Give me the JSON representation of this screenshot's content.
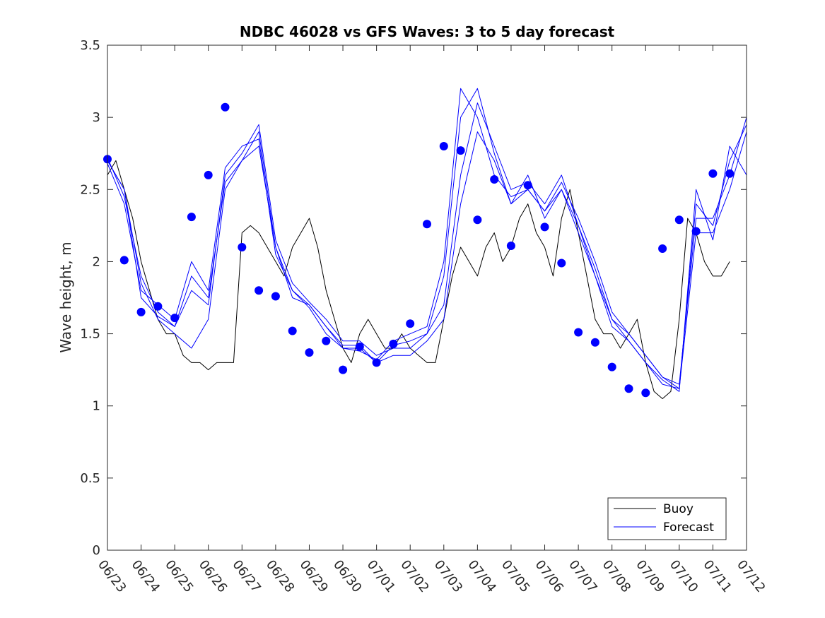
{
  "chart_data": {
    "type": "line",
    "title": "NDBC 46028 vs GFS Waves: 3 to 5 day forecast",
    "xlabel": "",
    "ylabel": "Wave height, m",
    "xlim": [
      "06/23",
      "07/12"
    ],
    "ylim": [
      0,
      3.5
    ],
    "grid": false,
    "legend_position": "bottom-right",
    "x_tick_labels": [
      "06/23",
      "06/24",
      "06/25",
      "06/26",
      "06/27",
      "06/28",
      "06/29",
      "06/30",
      "07/01",
      "07/02",
      "07/03",
      "07/04",
      "07/05",
      "07/06",
      "07/07",
      "07/08",
      "07/09",
      "07/10",
      "07/11",
      "07/12"
    ],
    "y_ticks": [
      0,
      0.5,
      1,
      1.5,
      2,
      2.5,
      3,
      3.5
    ],
    "colors": {
      "buoy": "#000000",
      "forecast": "#0000ff",
      "markers": "#0000ff"
    },
    "series": [
      {
        "name": "Buoy",
        "x": [
          "06/23 00:00",
          "06/23 06:00",
          "06/23 12:00",
          "06/23 18:00",
          "06/24 00:00",
          "06/24 06:00",
          "06/24 12:00",
          "06/24 18:00",
          "06/25 00:00",
          "06/25 06:00",
          "06/25 12:00",
          "06/25 18:00",
          "06/26 00:00",
          "06/26 06:00",
          "06/26 12:00",
          "06/26 18:00",
          "06/27 00:00",
          "06/27 06:00",
          "06/27 12:00",
          "06/27 18:00",
          "06/28 00:00",
          "06/28 06:00",
          "06/28 12:00",
          "06/28 18:00",
          "06/29 00:00",
          "06/29 06:00",
          "06/29 12:00",
          "06/29 18:00",
          "06/30 00:00",
          "06/30 06:00",
          "06/30 12:00",
          "06/30 18:00",
          "07/01 00:00",
          "07/01 06:00",
          "07/01 12:00",
          "07/01 18:00",
          "07/02 00:00",
          "07/02 06:00",
          "07/02 12:00",
          "07/02 18:00",
          "07/03 00:00",
          "07/03 06:00",
          "07/03 12:00",
          "07/03 18:00",
          "07/04 00:00",
          "07/04 06:00",
          "07/04 12:00",
          "07/04 18:00",
          "07/05 00:00",
          "07/05 06:00",
          "07/05 12:00",
          "07/05 18:00",
          "07/06 00:00",
          "07/06 06:00",
          "07/06 12:00",
          "07/06 18:00",
          "07/07 00:00",
          "07/07 06:00",
          "07/07 12:00",
          "07/07 18:00",
          "07/08 00:00",
          "07/08 06:00",
          "07/08 12:00",
          "07/08 18:00",
          "07/09 00:00",
          "07/09 06:00",
          "07/09 12:00",
          "07/09 18:00",
          "07/10 00:00",
          "07/10 06:00",
          "07/10 12:00",
          "07/10 18:00",
          "07/11 00:00",
          "07/11 06:00",
          "07/11 12:00"
        ],
        "values": [
          2.6,
          2.7,
          2.5,
          2.3,
          2.0,
          1.8,
          1.6,
          1.5,
          1.5,
          1.35,
          1.3,
          1.3,
          1.25,
          1.3,
          1.3,
          1.3,
          2.2,
          2.25,
          2.2,
          2.1,
          2.0,
          1.9,
          2.1,
          2.2,
          2.3,
          2.1,
          1.8,
          1.6,
          1.4,
          1.3,
          1.5,
          1.6,
          1.5,
          1.4,
          1.4,
          1.5,
          1.4,
          1.35,
          1.3,
          1.3,
          1.6,
          1.9,
          2.1,
          2.0,
          1.9,
          2.1,
          2.2,
          2.0,
          2.1,
          2.3,
          2.4,
          2.2,
          2.1,
          1.9,
          2.3,
          2.5,
          2.2,
          1.9,
          1.6,
          1.5,
          1.5,
          1.4,
          1.5,
          1.6,
          1.3,
          1.1,
          1.05,
          1.1,
          1.6,
          2.3,
          2.2,
          2.0,
          1.9,
          1.9,
          2.0
        ]
      },
      {
        "name": "Forecast",
        "x": [
          "06/23 00:00",
          "06/23 12:00",
          "06/24 00:00",
          "06/24 12:00",
          "06/25 00:00",
          "06/25 12:00",
          "06/26 00:00",
          "06/26 12:00",
          "06/27 00:00",
          "06/27 12:00",
          "06/28 00:00",
          "06/28 12:00",
          "06/29 00:00",
          "06/29 12:00",
          "06/30 00:00",
          "06/30 12:00",
          "07/01 00:00",
          "07/01 12:00",
          "07/02 00:00",
          "07/02 12:00",
          "07/03 00:00",
          "07/03 12:00",
          "07/04 00:00",
          "07/04 12:00",
          "07/05 00:00",
          "07/05 12:00",
          "07/06 00:00",
          "07/06 12:00",
          "07/07 00:00",
          "07/07 12:00",
          "07/08 00:00",
          "07/08 12:00",
          "07/09 00:00",
          "07/09 12:00",
          "07/10 00:00",
          "07/10 12:00",
          "07/11 00:00",
          "07/11 12:00",
          "07/12 00:00"
        ],
        "values": [
          2.7,
          2.5,
          1.85,
          1.6,
          1.5,
          1.4,
          1.6,
          2.5,
          2.7,
          2.9,
          2.1,
          1.8,
          1.7,
          1.55,
          1.4,
          1.4,
          1.3,
          1.35,
          1.35,
          1.45,
          1.6,
          2.4,
          2.9,
          2.7,
          2.4,
          2.5,
          2.35,
          2.5,
          2.2,
          1.9,
          1.55,
          1.45,
          1.3,
          1.15,
          1.12,
          2.2,
          2.2,
          2.5,
          2.9
        ]
      },
      {
        "name": "",
        "x": [
          "06/23 00:00",
          "06/23 12:00",
          "06/24 00:00",
          "06/24 12:00",
          "06/25 00:00",
          "06/25 12:00",
          "06/26 00:00",
          "06/26 12:00",
          "06/27 00:00",
          "06/27 12:00",
          "06/28 00:00",
          "06/28 12:00",
          "06/29 00:00",
          "06/29 12:00",
          "06/30 00:00",
          "06/30 12:00",
          "07/01 00:00",
          "07/01 12:00",
          "07/02 00:00",
          "07/02 12:00",
          "07/03 00:00",
          "07/03 12:00",
          "07/04 00:00",
          "07/04 12:00",
          "07/05 00:00",
          "07/05 12:00",
          "07/06 00:00",
          "07/06 12:00",
          "07/07 00:00",
          "07/07 12:00",
          "07/08 00:00",
          "07/08 12:00",
          "07/09 00:00",
          "07/09 12:00",
          "07/10 00:00",
          "07/10 12:00",
          "07/11 00:00",
          "07/11 12:00",
          "07/12 00:00"
        ],
        "values": [
          2.72,
          2.45,
          1.9,
          1.65,
          1.55,
          1.8,
          1.7,
          2.6,
          2.75,
          2.95,
          2.15,
          1.85,
          1.72,
          1.6,
          1.45,
          1.45,
          1.35,
          1.4,
          1.4,
          1.5,
          1.7,
          2.6,
          3.1,
          2.8,
          2.5,
          2.55,
          2.4,
          2.6,
          2.25,
          1.95,
          1.6,
          1.5,
          1.35,
          1.2,
          1.15,
          2.3,
          2.3,
          2.6,
          3.0
        ]
      },
      {
        "name": "",
        "x": [
          "06/23 00:00",
          "06/23 12:00",
          "06/24 00:00",
          "06/24 12:00",
          "06/25 00:00",
          "06/25 12:00",
          "06/26 00:00",
          "06/26 12:00",
          "06/27 00:00",
          "06/27 12:00",
          "06/28 00:00",
          "06/28 12:00",
          "06/29 00:00",
          "06/29 12:00",
          "06/30 00:00",
          "06/30 12:00",
          "07/01 00:00",
          "07/01 12:00",
          "07/02 00:00",
          "07/02 12:00",
          "07/03 00:00",
          "07/03 12:00",
          "07/04 00:00",
          "07/04 12:00",
          "07/05 00:00",
          "07/05 12:00",
          "07/06 00:00",
          "07/06 12:00",
          "07/07 00:00",
          "07/07 12:00",
          "07/08 00:00",
          "07/08 12:00",
          "07/09 00:00",
          "07/09 12:00",
          "07/10 00:00",
          "07/10 12:00",
          "07/11 00:00",
          "07/11 12:00",
          "07/12 00:00"
        ],
        "values": [
          2.68,
          2.4,
          1.8,
          1.7,
          1.6,
          2.0,
          1.8,
          2.65,
          2.8,
          2.85,
          2.05,
          1.8,
          1.68,
          1.5,
          1.4,
          1.38,
          1.32,
          1.45,
          1.5,
          1.55,
          2.0,
          3.2,
          3.0,
          2.6,
          2.45,
          2.5,
          2.35,
          2.55,
          2.3,
          2.0,
          1.65,
          1.5,
          1.35,
          1.2,
          1.12,
          2.4,
          2.25,
          2.7,
          2.95
        ]
      },
      {
        "name": "",
        "x": [
          "06/23 00:00",
          "06/23 12:00",
          "06/24 00:00",
          "06/24 12:00",
          "06/25 00:00",
          "06/25 12:00",
          "06/26 00:00",
          "06/26 12:00",
          "06/27 00:00",
          "06/27 12:00",
          "06/28 00:00",
          "06/28 12:00",
          "06/29 00:00",
          "06/29 12:00",
          "06/30 00:00",
          "06/30 12:00",
          "07/01 00:00",
          "07/01 12:00",
          "07/02 00:00",
          "07/02 12:00",
          "07/03 00:00",
          "07/03 12:00",
          "07/04 00:00",
          "07/04 12:00",
          "07/05 00:00",
          "07/05 12:00",
          "07/06 00:00",
          "07/06 12:00",
          "07/07 00:00",
          "07/07 12:00",
          "07/08 00:00",
          "07/08 12:00",
          "07/09 00:00",
          "07/09 12:00",
          "07/10 00:00",
          "07/10 12:00",
          "07/11 00:00",
          "07/11 12:00",
          "07/12 00:00"
        ],
        "values": [
          2.7,
          2.5,
          1.75,
          1.62,
          1.55,
          1.9,
          1.75,
          2.55,
          2.7,
          2.8,
          2.1,
          1.75,
          1.7,
          1.55,
          1.42,
          1.42,
          1.3,
          1.42,
          1.45,
          1.5,
          1.9,
          3.0,
          3.2,
          2.75,
          2.4,
          2.6,
          2.3,
          2.5,
          2.25,
          1.9,
          1.6,
          1.45,
          1.3,
          1.18,
          1.1,
          2.5,
          2.15,
          2.8,
          2.6
        ]
      }
    ],
    "markers": {
      "name": "",
      "x": [
        "06/23 00:00",
        "06/23 12:00",
        "06/24 00:00",
        "06/24 12:00",
        "06/25 00:00",
        "06/25 12:00",
        "06/26 00:00",
        "06/26 12:00",
        "06/27 00:00",
        "06/27 12:00",
        "06/28 00:00",
        "06/28 12:00",
        "06/29 00:00",
        "06/29 12:00",
        "06/30 00:00",
        "06/30 12:00",
        "07/01 00:00",
        "07/01 12:00",
        "07/02 00:00",
        "07/02 12:00",
        "07/03 00:00",
        "07/03 12:00",
        "07/04 00:00",
        "07/04 12:00",
        "07/05 00:00",
        "07/05 12:00",
        "07/06 00:00",
        "07/06 12:00",
        "07/07 00:00",
        "07/07 12:00",
        "07/08 00:00",
        "07/08 12:00",
        "07/09 00:00",
        "07/09 12:00",
        "07/10 00:00",
        "07/10 12:00",
        "07/11 00:00",
        "07/11 12:00"
      ],
      "values": [
        2.71,
        2.01,
        1.65,
        1.69,
        1.61,
        2.31,
        2.6,
        3.07,
        2.1,
        1.8,
        1.76,
        1.52,
        1.37,
        1.45,
        1.25,
        1.41,
        1.3,
        1.43,
        1.57,
        2.26,
        2.8,
        2.77,
        2.29,
        2.57,
        2.11,
        2.53,
        2.24,
        1.99,
        1.51,
        1.44,
        1.27,
        1.12,
        1.09,
        2.09,
        2.29,
        2.21,
        2.61,
        2.61
      ]
    }
  },
  "legend": {
    "entries": [
      {
        "label": "Buoy",
        "color": "#000000"
      },
      {
        "label": "Forecast",
        "color": "#0000ff"
      }
    ]
  }
}
